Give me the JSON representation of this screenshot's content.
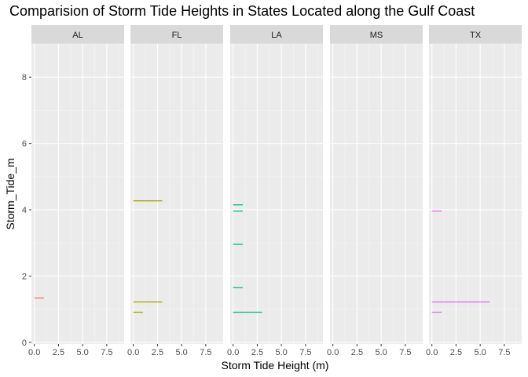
{
  "chart_data": {
    "type": "bar",
    "title": "Comparision of Storm Tide Heights in States Located along the Gulf Coast",
    "xlabel": "Storm Tide Height (m)",
    "ylabel": "Storm_Tide_m",
    "xlim": [
      -0.3,
      9.3
    ],
    "ylim": [
      -0.05,
      9.0
    ],
    "x_ticks": [
      "0.0",
      "2.5",
      "5.0",
      "7.5"
    ],
    "x_tick_values": [
      0,
      2.5,
      5.0,
      7.5
    ],
    "y_ticks": [
      "0",
      "2",
      "4",
      "6",
      "8"
    ],
    "y_tick_values": [
      0,
      2,
      4,
      6,
      8
    ],
    "grid": true,
    "facets": [
      "AL",
      "FL",
      "LA",
      "MS",
      "TX"
    ],
    "colors": {
      "AL": "#F8766D",
      "FL": "#A3A500",
      "LA": "#00BF7D",
      "MS": "#00B0F6",
      "TX": "#E76BF3"
    },
    "series": [
      {
        "facet": "AL",
        "bars": [
          {
            "y": 1.34,
            "count": 1
          }
        ]
      },
      {
        "facet": "FL",
        "bars": [
          {
            "y": 4.27,
            "count": 3
          },
          {
            "y": 1.22,
            "count": 3
          },
          {
            "y": 0.91,
            "count": 1
          }
        ]
      },
      {
        "facet": "LA",
        "bars": [
          {
            "y": 4.15,
            "count": 1
          },
          {
            "y": 3.96,
            "count": 1
          },
          {
            "y": 2.96,
            "count": 1
          },
          {
            "y": 1.65,
            "count": 1
          },
          {
            "y": 0.91,
            "count": 3
          }
        ]
      },
      {
        "facet": "MS",
        "bars": []
      },
      {
        "facet": "TX",
        "bars": [
          {
            "y": 3.96,
            "count": 1
          },
          {
            "y": 1.22,
            "count": 6
          },
          {
            "y": 0.91,
            "count": 1
          }
        ]
      }
    ]
  }
}
